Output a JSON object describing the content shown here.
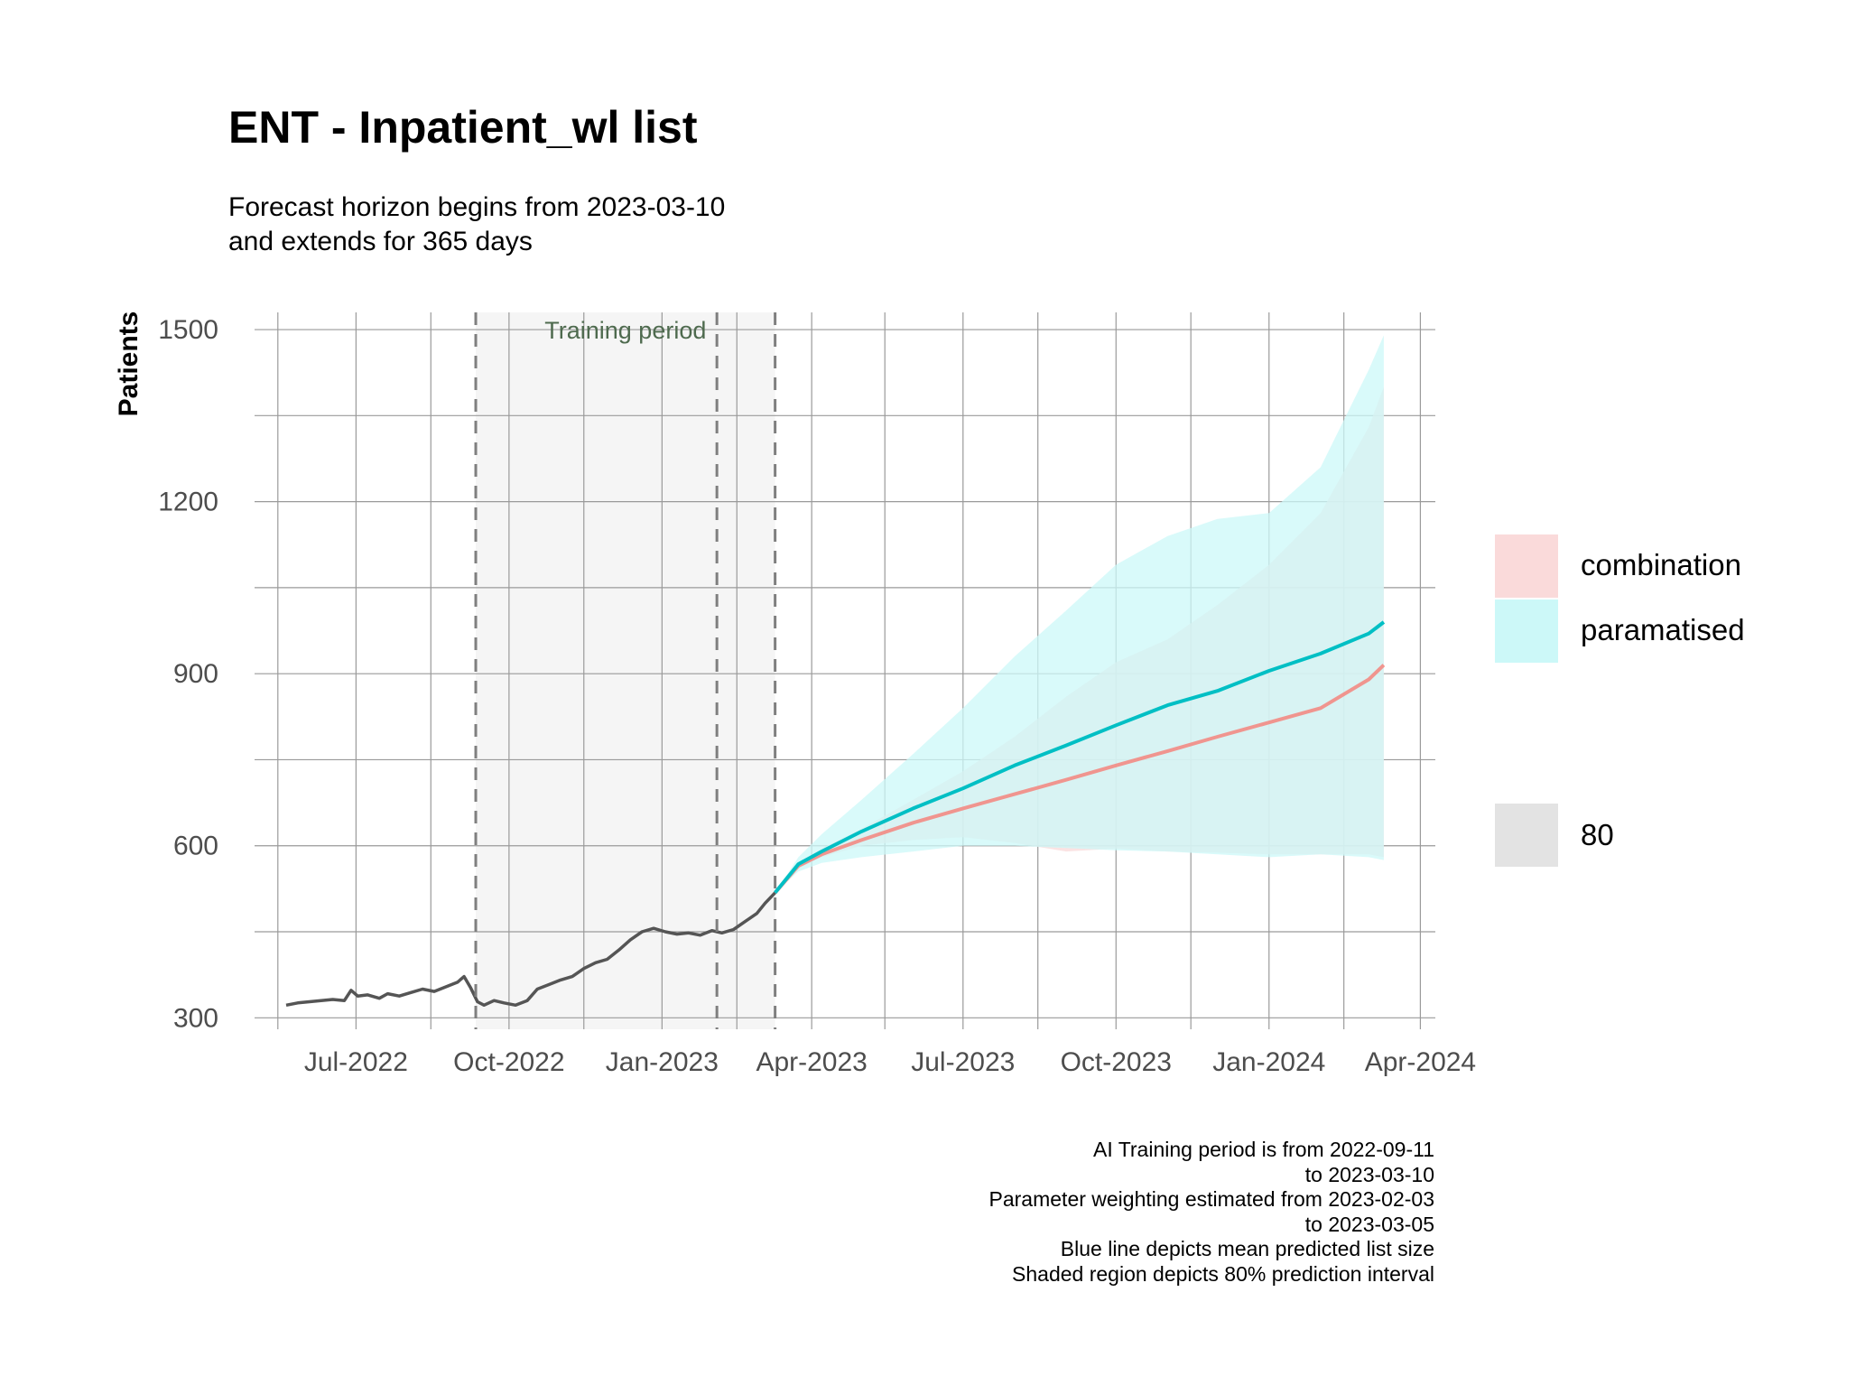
{
  "chart_data": {
    "type": "line",
    "title": "ENT - Inpatient_wl list",
    "subtitle": [
      "Forecast horizon begins from 2023-03-10",
      "and extends for 365 days"
    ],
    "ylabel": "Patients",
    "xlabel": "",
    "ylim": [
      280,
      1530
    ],
    "xlim": [
      "2022-05-01",
      "2024-04-10"
    ],
    "y_ticks": [
      300,
      600,
      900,
      1200,
      1500
    ],
    "x_ticks": [
      {
        "date": "2022-07-01",
        "label": "Jul-2022"
      },
      {
        "date": "2022-10-01",
        "label": "Oct-2022"
      },
      {
        "date": "2023-01-01",
        "label": "Jan-2023"
      },
      {
        "date": "2023-04-01",
        "label": "Apr-2023"
      },
      {
        "date": "2023-07-01",
        "label": "Jul-2023"
      },
      {
        "date": "2023-10-01",
        "label": "Oct-2023"
      },
      {
        "date": "2024-01-01",
        "label": "Jan-2024"
      },
      {
        "date": "2024-04-01",
        "label": "Apr-2024"
      }
    ],
    "grid": true,
    "legend_position": "right",
    "training_period": {
      "start": "2022-09-11",
      "end": "2023-03-10",
      "label": "Training period"
    },
    "parameter_window": {
      "start": "2023-02-03",
      "end": "2023-03-05"
    },
    "vlines": [
      "2022-09-11",
      "2023-02-03",
      "2023-03-10"
    ],
    "history": {
      "color": "#555555",
      "points": [
        [
          "2022-05-20",
          322
        ],
        [
          "2022-05-27",
          326
        ],
        [
          "2022-06-03",
          328
        ],
        [
          "2022-06-10",
          330
        ],
        [
          "2022-06-17",
          332
        ],
        [
          "2022-06-24",
          330
        ],
        [
          "2022-06-28",
          348
        ],
        [
          "2022-07-02",
          338
        ],
        [
          "2022-07-08",
          340
        ],
        [
          "2022-07-15",
          334
        ],
        [
          "2022-07-20",
          342
        ],
        [
          "2022-07-27",
          338
        ],
        [
          "2022-08-03",
          344
        ],
        [
          "2022-08-10",
          350
        ],
        [
          "2022-08-17",
          346
        ],
        [
          "2022-08-24",
          354
        ],
        [
          "2022-08-31",
          362
        ],
        [
          "2022-09-04",
          372
        ],
        [
          "2022-09-08",
          352
        ],
        [
          "2022-09-12",
          328
        ],
        [
          "2022-09-16",
          322
        ],
        [
          "2022-09-22",
          330
        ],
        [
          "2022-09-28",
          326
        ],
        [
          "2022-10-05",
          322
        ],
        [
          "2022-10-12",
          330
        ],
        [
          "2022-10-18",
          350
        ],
        [
          "2022-10-25",
          358
        ],
        [
          "2022-11-01",
          366
        ],
        [
          "2022-11-08",
          372
        ],
        [
          "2022-11-15",
          386
        ],
        [
          "2022-11-22",
          396
        ],
        [
          "2022-11-29",
          402
        ],
        [
          "2022-12-06",
          418
        ],
        [
          "2022-12-13",
          436
        ],
        [
          "2022-12-20",
          450
        ],
        [
          "2022-12-27",
          456
        ],
        [
          "2023-01-03",
          450
        ],
        [
          "2023-01-10",
          446
        ],
        [
          "2023-01-17",
          448
        ],
        [
          "2023-01-24",
          444
        ],
        [
          "2023-01-31",
          452
        ],
        [
          "2023-02-06",
          448
        ],
        [
          "2023-02-13",
          454
        ],
        [
          "2023-02-20",
          468
        ],
        [
          "2023-02-27",
          482
        ],
        [
          "2023-03-04",
          500
        ],
        [
          "2023-03-10",
          518
        ]
      ]
    },
    "series": [
      {
        "name": "combination",
        "color": "#F8766D",
        "fill": "#FADADA",
        "points": [
          [
            "2023-03-10",
            518
          ],
          [
            "2023-03-24",
            565
          ],
          [
            "2023-04-07",
            585
          ],
          [
            "2023-05-01",
            610
          ],
          [
            "2023-06-01",
            640
          ],
          [
            "2023-07-01",
            665
          ],
          [
            "2023-08-01",
            690
          ],
          [
            "2023-09-01",
            715
          ],
          [
            "2023-10-01",
            740
          ],
          [
            "2023-11-01",
            765
          ],
          [
            "2023-12-01",
            790
          ],
          [
            "2024-01-01",
            815
          ],
          [
            "2024-02-01",
            840
          ],
          [
            "2024-03-01",
            890
          ],
          [
            "2024-03-10",
            915
          ]
        ],
        "lower": [
          [
            "2023-03-10",
            518
          ],
          [
            "2023-03-24",
            560
          ],
          [
            "2023-04-07",
            580
          ],
          [
            "2023-05-01",
            600
          ],
          [
            "2023-06-01",
            610
          ],
          [
            "2023-07-01",
            615
          ],
          [
            "2023-08-01",
            605
          ],
          [
            "2023-09-01",
            590
          ],
          [
            "2023-10-01",
            595
          ],
          [
            "2023-11-01",
            590
          ],
          [
            "2023-12-01",
            588
          ],
          [
            "2024-01-01",
            585
          ],
          [
            "2024-02-01",
            585
          ],
          [
            "2024-03-01",
            585
          ],
          [
            "2024-03-10",
            580
          ]
        ],
        "upper": [
          [
            "2023-03-10",
            518
          ],
          [
            "2023-03-24",
            570
          ],
          [
            "2023-04-07",
            595
          ],
          [
            "2023-05-01",
            630
          ],
          [
            "2023-06-01",
            680
          ],
          [
            "2023-07-01",
            730
          ],
          [
            "2023-08-01",
            790
          ],
          [
            "2023-09-01",
            860
          ],
          [
            "2023-10-01",
            920
          ],
          [
            "2023-11-01",
            960
          ],
          [
            "2023-12-01",
            1020
          ],
          [
            "2024-01-01",
            1090
          ],
          [
            "2024-02-01",
            1180
          ],
          [
            "2024-03-01",
            1330
          ],
          [
            "2024-03-10",
            1400
          ]
        ]
      },
      {
        "name": "paramatised",
        "color": "#00BFC4",
        "fill": "#CCF8F8",
        "points": [
          [
            "2023-03-10",
            518
          ],
          [
            "2023-03-24",
            568
          ],
          [
            "2023-04-07",
            590
          ],
          [
            "2023-05-01",
            625
          ],
          [
            "2023-06-01",
            665
          ],
          [
            "2023-07-01",
            700
          ],
          [
            "2023-08-01",
            740
          ],
          [
            "2023-09-01",
            775
          ],
          [
            "2023-10-01",
            810
          ],
          [
            "2023-11-01",
            845
          ],
          [
            "2023-12-01",
            870
          ],
          [
            "2024-01-01",
            905
          ],
          [
            "2024-02-01",
            935
          ],
          [
            "2024-03-01",
            970
          ],
          [
            "2024-03-10",
            990
          ]
        ],
        "lower": [
          [
            "2023-03-10",
            518
          ],
          [
            "2023-03-24",
            555
          ],
          [
            "2023-04-07",
            570
          ],
          [
            "2023-05-01",
            580
          ],
          [
            "2023-06-01",
            590
          ],
          [
            "2023-07-01",
            600
          ],
          [
            "2023-08-01",
            600
          ],
          [
            "2023-09-01",
            596
          ],
          [
            "2023-10-01",
            592
          ],
          [
            "2023-11-01",
            590
          ],
          [
            "2023-12-01",
            585
          ],
          [
            "2024-01-01",
            580
          ],
          [
            "2024-02-01",
            585
          ],
          [
            "2024-03-01",
            580
          ],
          [
            "2024-03-10",
            575
          ]
        ],
        "upper": [
          [
            "2023-03-10",
            518
          ],
          [
            "2023-03-24",
            580
          ],
          [
            "2023-04-07",
            620
          ],
          [
            "2023-05-01",
            680
          ],
          [
            "2023-06-01",
            760
          ],
          [
            "2023-07-01",
            840
          ],
          [
            "2023-08-01",
            930
          ],
          [
            "2023-09-01",
            1010
          ],
          [
            "2023-10-01",
            1090
          ],
          [
            "2023-11-01",
            1140
          ],
          [
            "2023-12-01",
            1170
          ],
          [
            "2024-01-01",
            1180
          ],
          [
            "2024-02-01",
            1260
          ],
          [
            "2024-03-01",
            1430
          ],
          [
            "2024-03-10",
            1490
          ]
        ]
      }
    ],
    "legend": {
      "entries": [
        {
          "name": "combination",
          "color": "#FADADA"
        },
        {
          "name": "paramatised",
          "color": "#CCF8F8"
        }
      ],
      "interval": {
        "name": "80",
        "color": "#E3E3E3"
      }
    },
    "caption": [
      "AI Training period is from 2022-09-11",
      "to 2023-03-10",
      "Parameter weighting estimated from 2023-02-03",
      "to 2023-03-05",
      "Blue line depicts mean predicted list size",
      "Shaded region depicts 80% prediction interval"
    ]
  }
}
